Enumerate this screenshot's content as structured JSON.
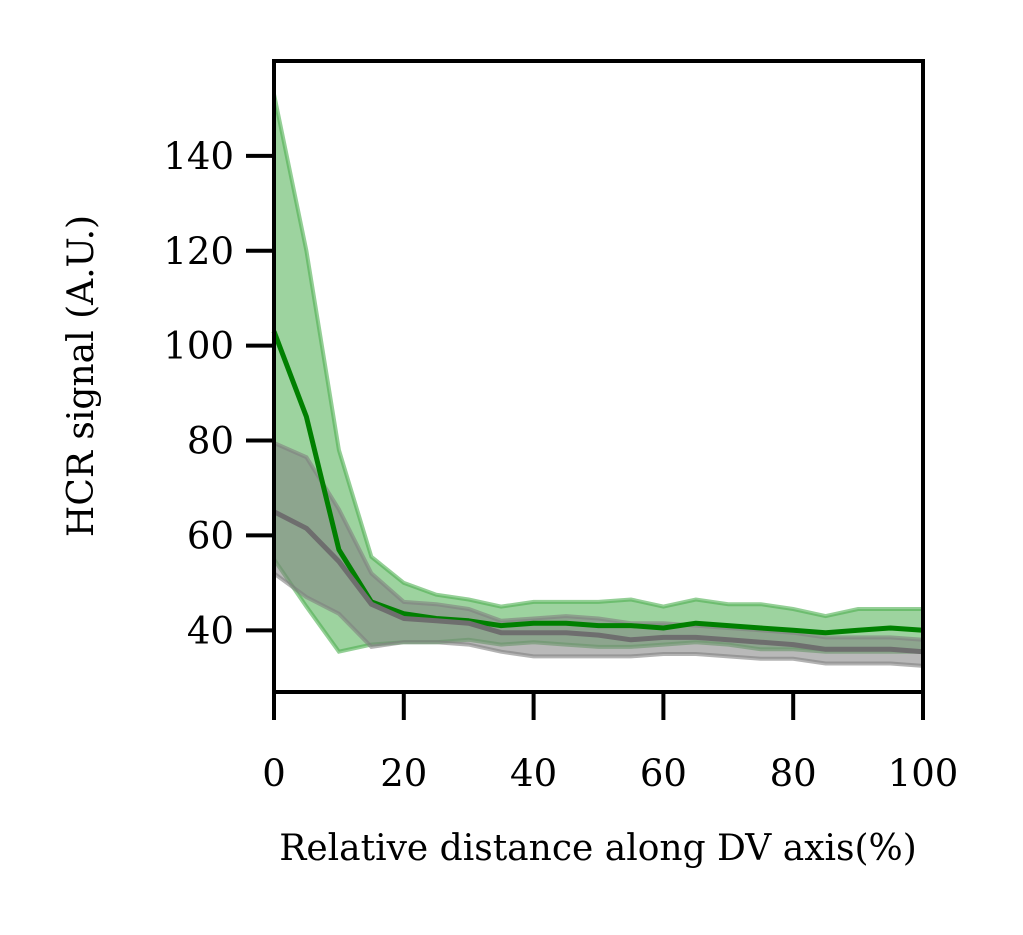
{
  "chart_data": {
    "type": "line",
    "title": "",
    "xlabel": "Relative distance along DV axis(%)",
    "ylabel": "HCR signal (A.U.)",
    "xlim": [
      0,
      100
    ],
    "ylim": [
      27,
      160
    ],
    "xticks": [
      0,
      20,
      40,
      60,
      80,
      100
    ],
    "yticks": [
      40,
      60,
      80,
      100,
      120,
      140
    ],
    "grid": false,
    "legend": "none",
    "x": [
      0,
      5,
      10,
      15,
      20,
      25,
      30,
      35,
      40,
      45,
      50,
      55,
      60,
      65,
      70,
      75,
      80,
      85,
      90,
      95,
      100
    ],
    "series": [
      {
        "color": "#008000",
        "band_color": "#4caf50",
        "mean": [
          103,
          85,
          57,
          46,
          43.5,
          42.5,
          42,
          41,
          41.5,
          41.5,
          41,
          41,
          40.5,
          41.5,
          41,
          40.5,
          40,
          39.5,
          40,
          40.5,
          40
        ],
        "upper": [
          153,
          120,
          78,
          55.5,
          50,
          47.5,
          46.5,
          45,
          46,
          46,
          46,
          46.5,
          45,
          46.5,
          45.5,
          45.5,
          44.5,
          43,
          44.5,
          44.5,
          44.5
        ],
        "lower": [
          55,
          45,
          35.5,
          37,
          37.5,
          37.5,
          38,
          37,
          37.5,
          37,
          36.5,
          36.5,
          37,
          37.5,
          37,
          36,
          36,
          35.5,
          35.5,
          35.5,
          35.5
        ]
      },
      {
        "color": "#6e6e6e",
        "band_color": "#808080",
        "mean": [
          65,
          61.5,
          54.5,
          45.5,
          42.5,
          42,
          41.5,
          39.5,
          39.5,
          39.5,
          39,
          38,
          38.5,
          38.5,
          38,
          37.5,
          37,
          36,
          36,
          36,
          35.5
        ],
        "upper": [
          79.5,
          76.5,
          65.5,
          52,
          46,
          45.5,
          44.5,
          42,
          42.5,
          43,
          42.5,
          41.5,
          41.5,
          41,
          40.5,
          40,
          39.5,
          38.5,
          38.5,
          38.5,
          38
        ],
        "lower": [
          52,
          47,
          43.5,
          36.5,
          37.5,
          37.5,
          37,
          35.5,
          34.5,
          34.5,
          34.5,
          34.5,
          35,
          35,
          34.5,
          34,
          34,
          33,
          33,
          33,
          32.5
        ]
      }
    ]
  }
}
